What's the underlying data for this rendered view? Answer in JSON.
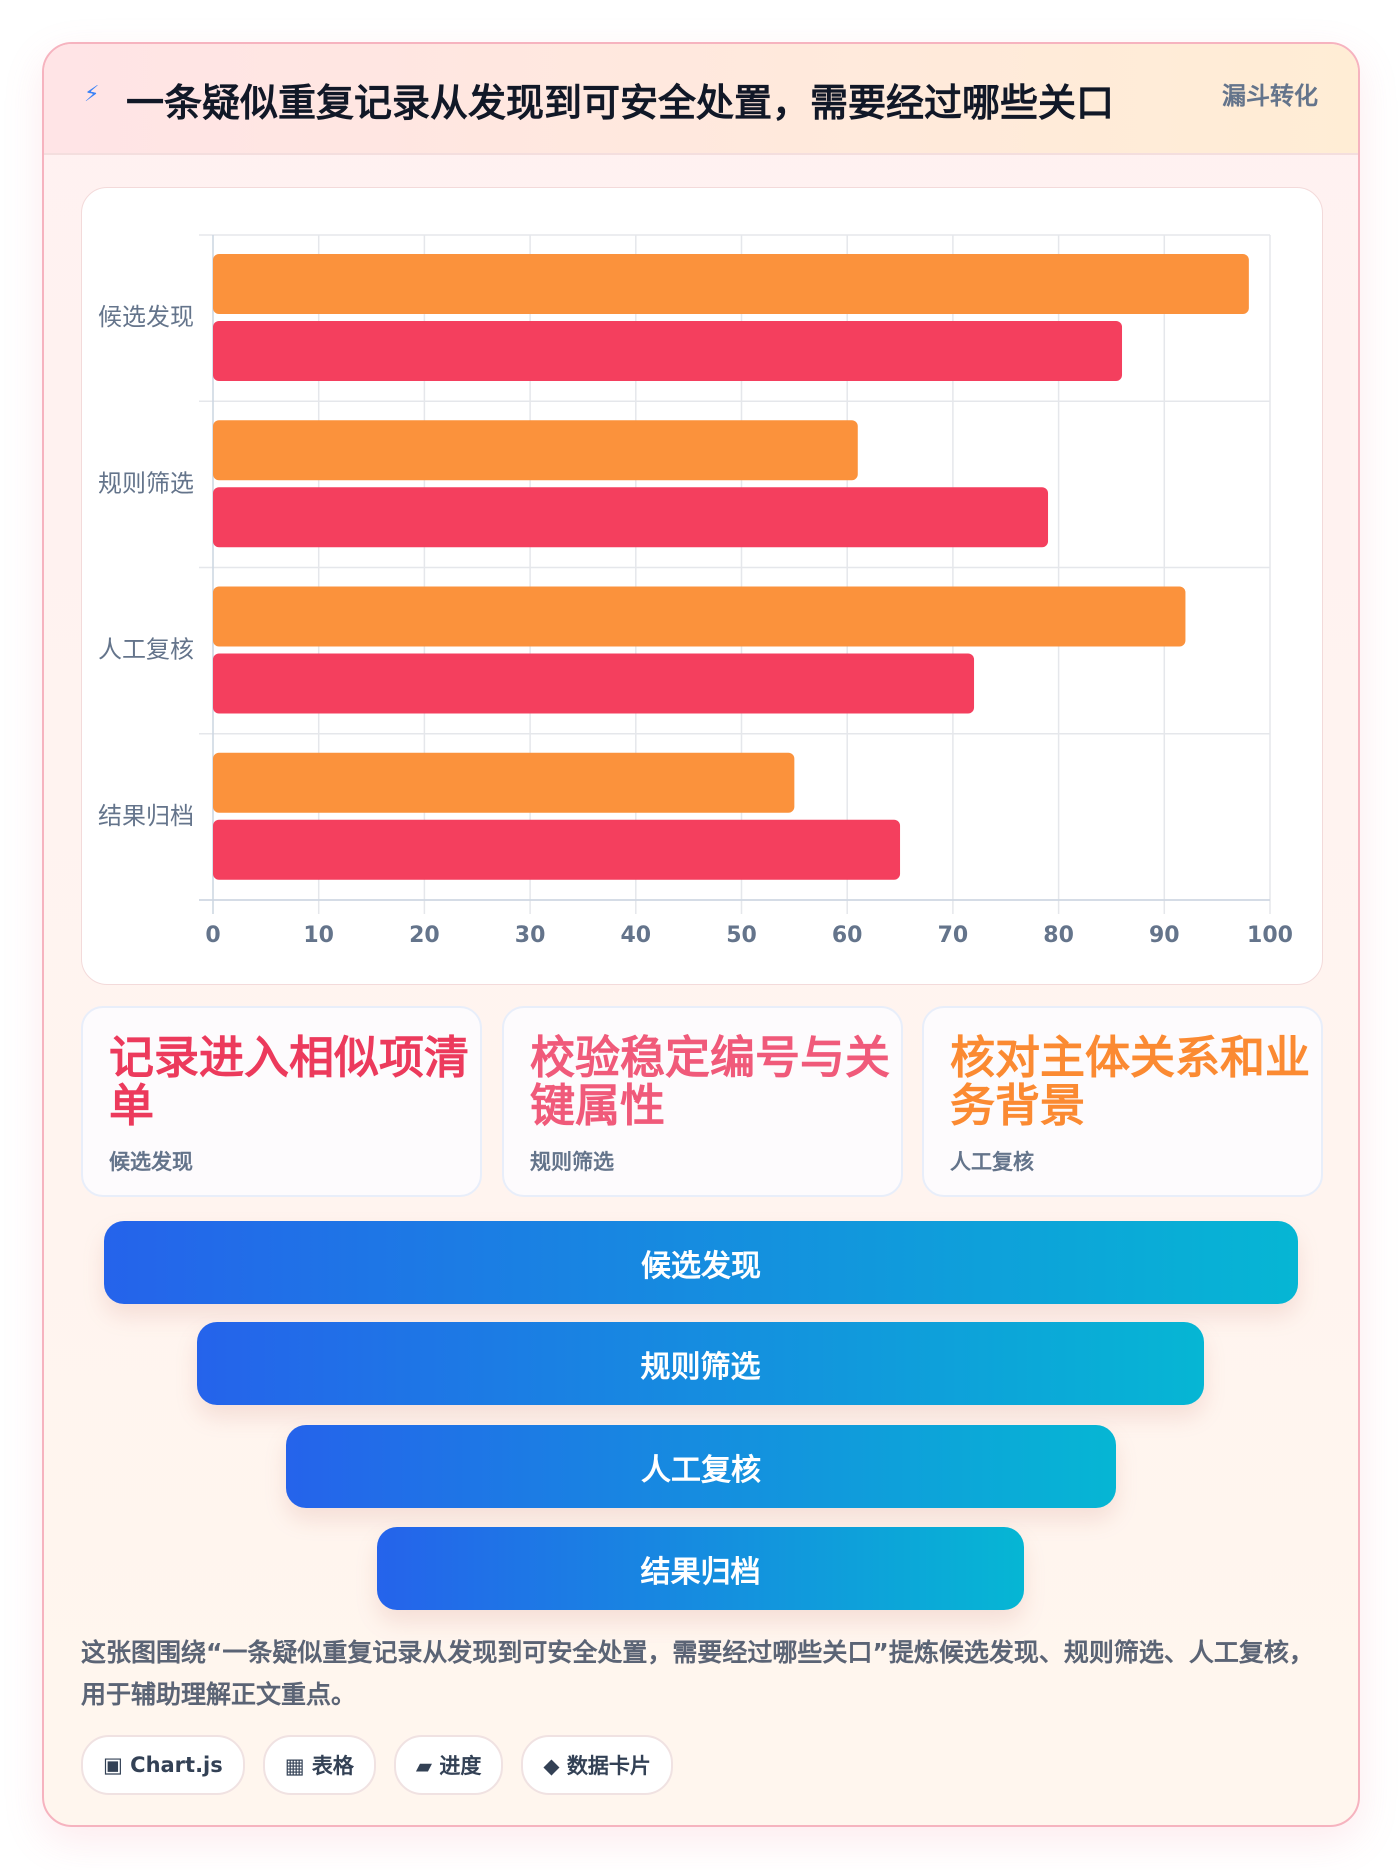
{
  "header": {
    "icon": "⚡",
    "title": "一条疑似重复记录从发现到可安全处置，需要经过哪些关口",
    "tag": "漏斗转化"
  },
  "chart_data": {
    "type": "hbar",
    "categories": [
      "候选发现",
      "规则筛选",
      "人工复核",
      "结果归档"
    ],
    "series": [
      {
        "color": "#fb923c",
        "values": [
          98,
          61,
          92,
          55
        ]
      },
      {
        "color": "#f43f5e",
        "values": [
          86,
          79,
          72,
          65
        ]
      }
    ],
    "xlim": [
      0,
      100
    ],
    "xticks": [
      0,
      10,
      20,
      30,
      40,
      50,
      60,
      70,
      80,
      90,
      100
    ],
    "grid": true
  },
  "cards": [
    {
      "title": "记录进入相似项清单",
      "label": "候选发现"
    },
    {
      "title": "校验稳定编号与关键属性",
      "label": "规则筛选"
    },
    {
      "title": "核对主体关系和业务背景",
      "label": "人工复核"
    }
  ],
  "funnel": [
    "候选发现",
    "规则筛选",
    "人工复核",
    "结果归档"
  ],
  "description": "这张图围绕“一条疑似重复记录从发现到可安全处置，需要经过哪些关口”提炼候选发现、规则筛选、人工复核，用于辅助理解正文重点。",
  "tags": [
    "▣ Chart.js",
    "▦ 表格",
    "▰ 进度",
    "◆ 数据卡片"
  ]
}
